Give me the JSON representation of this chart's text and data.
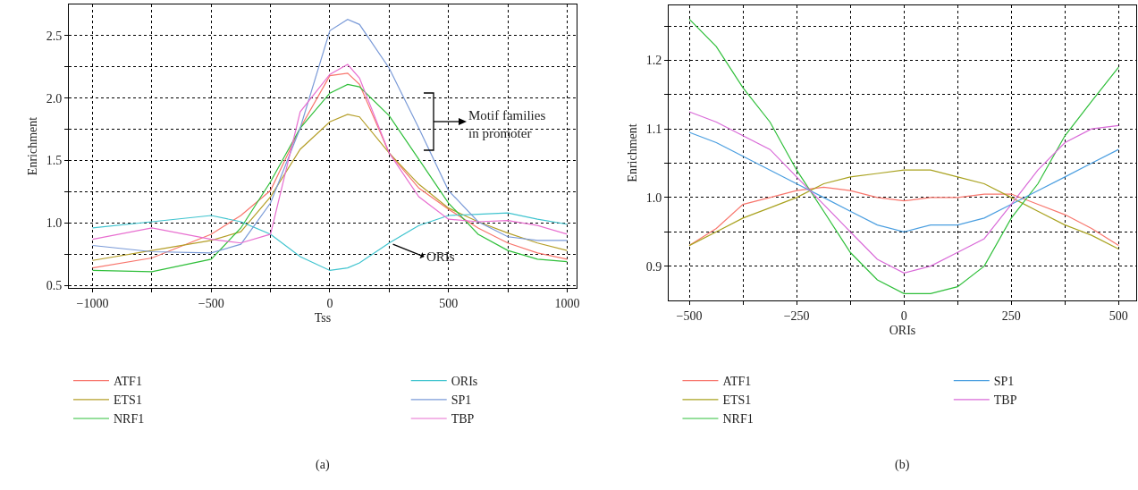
{
  "chart_data": [
    {
      "type": "line",
      "xlabel": "Tss",
      "ylabel": "Enrichment",
      "legend": "bottom",
      "grid": true,
      "line_style": "solid",
      "marker": "none",
      "x": [
        -1000,
        -750,
        -500,
        -375,
        -250,
        -125,
        0,
        75,
        125,
        250,
        375,
        500,
        625,
        750,
        875,
        1000
      ],
      "xlim": [
        -1100,
        1040
      ],
      "ylim": [
        0.48,
        2.75
      ],
      "xticks": [
        {
          "value": -1000,
          "label": "−1000"
        },
        {
          "value": -750,
          "label": null
        },
        {
          "value": -500,
          "label": "−500"
        },
        {
          "value": -250,
          "label": null
        },
        0,
        {
          "value": 250,
          "label": null
        },
        500,
        {
          "value": 750,
          "label": null
        },
        1000
      ],
      "yticks": [
        0.5,
        {
          "value": 0.75,
          "label": null
        },
        {
          "value": 1,
          "label": "1.0"
        },
        {
          "value": 1.25,
          "label": null
        },
        1.5,
        {
          "value": 1.75,
          "label": null
        },
        {
          "value": 2,
          "label": "2.0"
        },
        {
          "value": 2.25,
          "label": null
        },
        2.5
      ],
      "series": [
        {
          "name": "ATF1",
          "color": "#f8766d",
          "values": [
            0.64,
            0.72,
            0.91,
            1.06,
            1.26,
            1.76,
            2.18,
            2.2,
            2.11,
            1.56,
            1.28,
            1.11,
            0.96,
            0.84,
            0.76,
            0.71
          ]
        },
        {
          "name": "ETS1",
          "color": "#b59f2a",
          "values": [
            0.7,
            0.78,
            0.86,
            0.93,
            1.21,
            1.59,
            1.81,
            1.87,
            1.85,
            1.56,
            1.31,
            1.12,
            1.01,
            0.92,
            0.84,
            0.78
          ]
        },
        {
          "name": "NRF1",
          "color": "#2fbf3a",
          "values": [
            0.62,
            0.61,
            0.71,
            0.96,
            1.33,
            1.76,
            2.04,
            2.11,
            2.09,
            1.86,
            1.51,
            1.16,
            0.91,
            0.78,
            0.71,
            0.69
          ]
        },
        {
          "name": "ORIs",
          "color": "#40c4cf",
          "values": [
            0.96,
            1.01,
            1.06,
            1.01,
            0.91,
            0.73,
            0.62,
            0.64,
            0.68,
            0.84,
            0.98,
            1.06,
            1.07,
            1.08,
            1.03,
            0.99
          ]
        },
        {
          "name": "SP1",
          "color": "#7b9bd8",
          "values": [
            0.82,
            0.77,
            0.76,
            0.83,
            1.16,
            1.76,
            2.54,
            2.63,
            2.59,
            2.24,
            1.76,
            1.26,
            1.01,
            0.89,
            0.86,
            0.86
          ]
        },
        {
          "name": "TBP",
          "color": "#e86fd0",
          "values": [
            0.87,
            0.96,
            0.87,
            0.84,
            0.91,
            1.89,
            2.19,
            2.27,
            2.16,
            1.56,
            1.21,
            1.03,
            1.01,
            1.02,
            0.98,
            0.91
          ]
        }
      ],
      "annotations": [
        "Motif families in promoter",
        {
          "text": "ORIs",
          "x": 266,
          "y": 0.83
        },
        "(a)"
      ]
    },
    {
      "type": "line",
      "xlabel": "ORIs",
      "ylabel": "Enrichment",
      "legend": "bottom",
      "grid": true,
      "line_style": "solid",
      "marker": "none",
      "x": [
        -500,
        -437,
        -375,
        -312,
        -250,
        -187,
        -125,
        -62,
        0,
        62,
        125,
        187,
        250,
        312,
        375,
        437,
        500
      ],
      "xlim": [
        -548,
        541
      ],
      "ylim": [
        0.85,
        1.28
      ],
      "xticks": [
        {
          "value": -500,
          "label": "−500"
        },
        {
          "value": -375,
          "label": null
        },
        {
          "value": -250,
          "label": "−250"
        },
        {
          "value": -125,
          "label": null
        },
        0,
        {
          "value": 125,
          "label": null
        },
        250,
        {
          "value": 375,
          "label": null
        },
        500
      ],
      "yticks": [
        0.9,
        {
          "value": 0.95,
          "label": null
        },
        {
          "value": 1,
          "label": "1.0"
        },
        {
          "value": 1.05,
          "label": null
        },
        1.1,
        {
          "value": 1.15,
          "label": null
        },
        1.2,
        {
          "value": 1.25,
          "label": null
        }
      ],
      "series": [
        {
          "name": "ATF1",
          "color": "#f8766d",
          "values": [
            0.93,
            0.955,
            0.99,
            1.0,
            1.01,
            1.015,
            1.01,
            1.0,
            0.995,
            1.0,
            1.0,
            1.005,
            1.005,
            0.99,
            0.975,
            0.955,
            0.93
          ]
        },
        {
          "name": "ETS1",
          "color": "#a9a21f",
          "values": [
            0.93,
            0.95,
            0.97,
            0.985,
            1.0,
            1.02,
            1.03,
            1.035,
            1.04,
            1.04,
            1.03,
            1.02,
            1.0,
            0.98,
            0.96,
            0.945,
            0.925
          ]
        },
        {
          "name": "NRF1",
          "color": "#2fbf3a",
          "values": [
            1.26,
            1.22,
            1.16,
            1.11,
            1.04,
            0.98,
            0.92,
            0.88,
            0.86,
            0.86,
            0.87,
            0.9,
            0.97,
            1.02,
            1.09,
            1.14,
            1.19
          ]
        },
        {
          "name": "SP1",
          "color": "#4a9ee0",
          "values": [
            1.095,
            1.08,
            1.06,
            1.04,
            1.02,
            1.0,
            0.98,
            0.96,
            0.95,
            0.96,
            0.96,
            0.97,
            0.99,
            1.01,
            1.03,
            1.05,
            1.07
          ]
        },
        {
          "name": "TBP",
          "color": "#d96ad8",
          "values": [
            1.125,
            1.11,
            1.09,
            1.07,
            1.03,
            0.99,
            0.95,
            0.91,
            0.89,
            0.9,
            0.92,
            0.94,
            0.99,
            1.04,
            1.08,
            1.1,
            1.105
          ]
        }
      ],
      "annotations": [
        "(b)"
      ]
    }
  ]
}
